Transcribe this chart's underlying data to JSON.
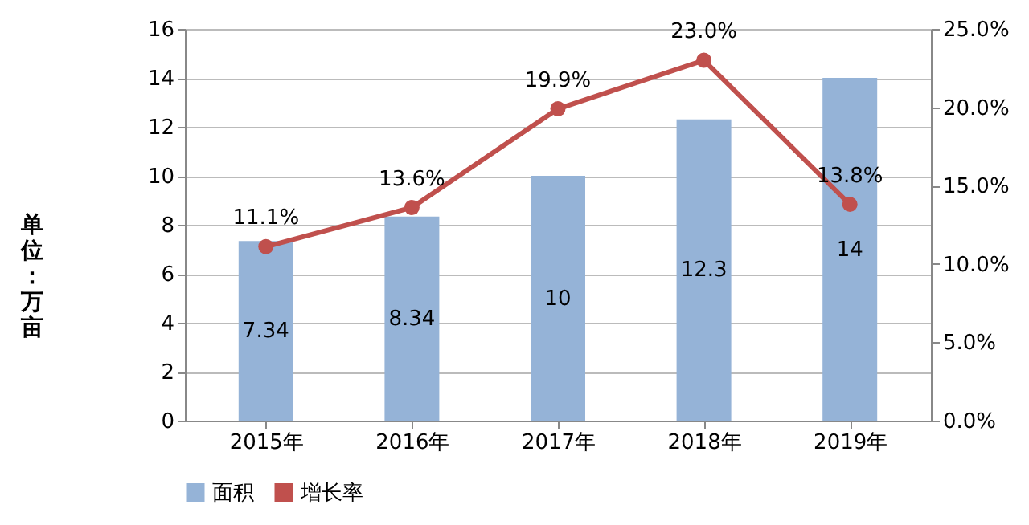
{
  "chart_data": {
    "type": "bar",
    "ylabel": "单位：万亩",
    "categories": [
      "2015年",
      "2016年",
      "2017年",
      "2018年",
      "2019年"
    ],
    "series": [
      {
        "name": "面积",
        "color": "#95b3d7",
        "values": [
          7.34,
          8.34,
          10,
          12.3,
          14
        ],
        "value_labels": [
          "7.34",
          "8.34",
          "10",
          "12.3",
          "14"
        ]
      },
      {
        "name": "增长率",
        "type": "line",
        "axis": "y2",
        "color": "#c0504d",
        "marker": "circle",
        "values": [
          11.1,
          13.6,
          19.9,
          23.0,
          13.8
        ],
        "value_labels": [
          "11.1%",
          "13.6%",
          "19.9%",
          "23.0%",
          "13.8%"
        ]
      }
    ],
    "ylim": [
      0,
      16
    ],
    "yticks": [
      0,
      2,
      4,
      6,
      8,
      10,
      12,
      14,
      16
    ],
    "y2lim": [
      0,
      25
    ],
    "y2ticks": [
      {
        "value": 0,
        "label": "0.0%"
      },
      {
        "value": 5,
        "label": "5.0%"
      },
      {
        "value": 10,
        "label": "10.0%"
      },
      {
        "value": 15,
        "label": "15.0%"
      },
      {
        "value": 20,
        "label": "20.0%"
      },
      {
        "value": 25,
        "label": "25.0%"
      }
    ],
    "grid": "y",
    "legend": "bottom"
  }
}
